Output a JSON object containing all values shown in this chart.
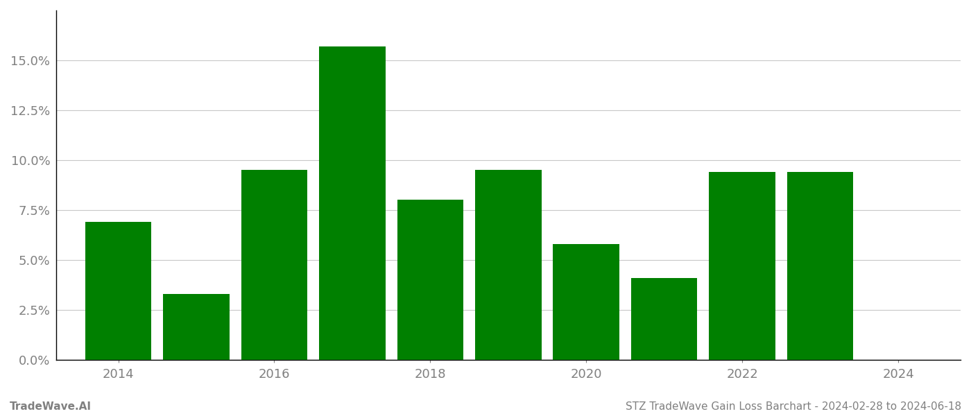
{
  "years": [
    2014,
    2015,
    2016,
    2017,
    2018,
    2019,
    2020,
    2021,
    2022,
    2023
  ],
  "values": [
    0.069,
    0.033,
    0.095,
    0.157,
    0.08,
    0.095,
    0.058,
    0.041,
    0.094,
    0.094
  ],
  "bar_color": "#008000",
  "background_color": "#ffffff",
  "tick_color": "#808080",
  "grid_color": "#c8c8c8",
  "footer_left": "TradeWave.AI",
  "footer_right": "STZ TradeWave Gain Loss Barchart - 2024-02-28 to 2024-06-18",
  "footer_color": "#808080",
  "ylim": [
    0,
    0.175
  ],
  "yticks": [
    0.0,
    0.025,
    0.05,
    0.075,
    0.1,
    0.125,
    0.15
  ],
  "xticks": [
    2014,
    2016,
    2018,
    2020,
    2022,
    2024
  ],
  "bar_width": 0.85,
  "xlim_left": 2013.2,
  "xlim_right": 2024.8
}
